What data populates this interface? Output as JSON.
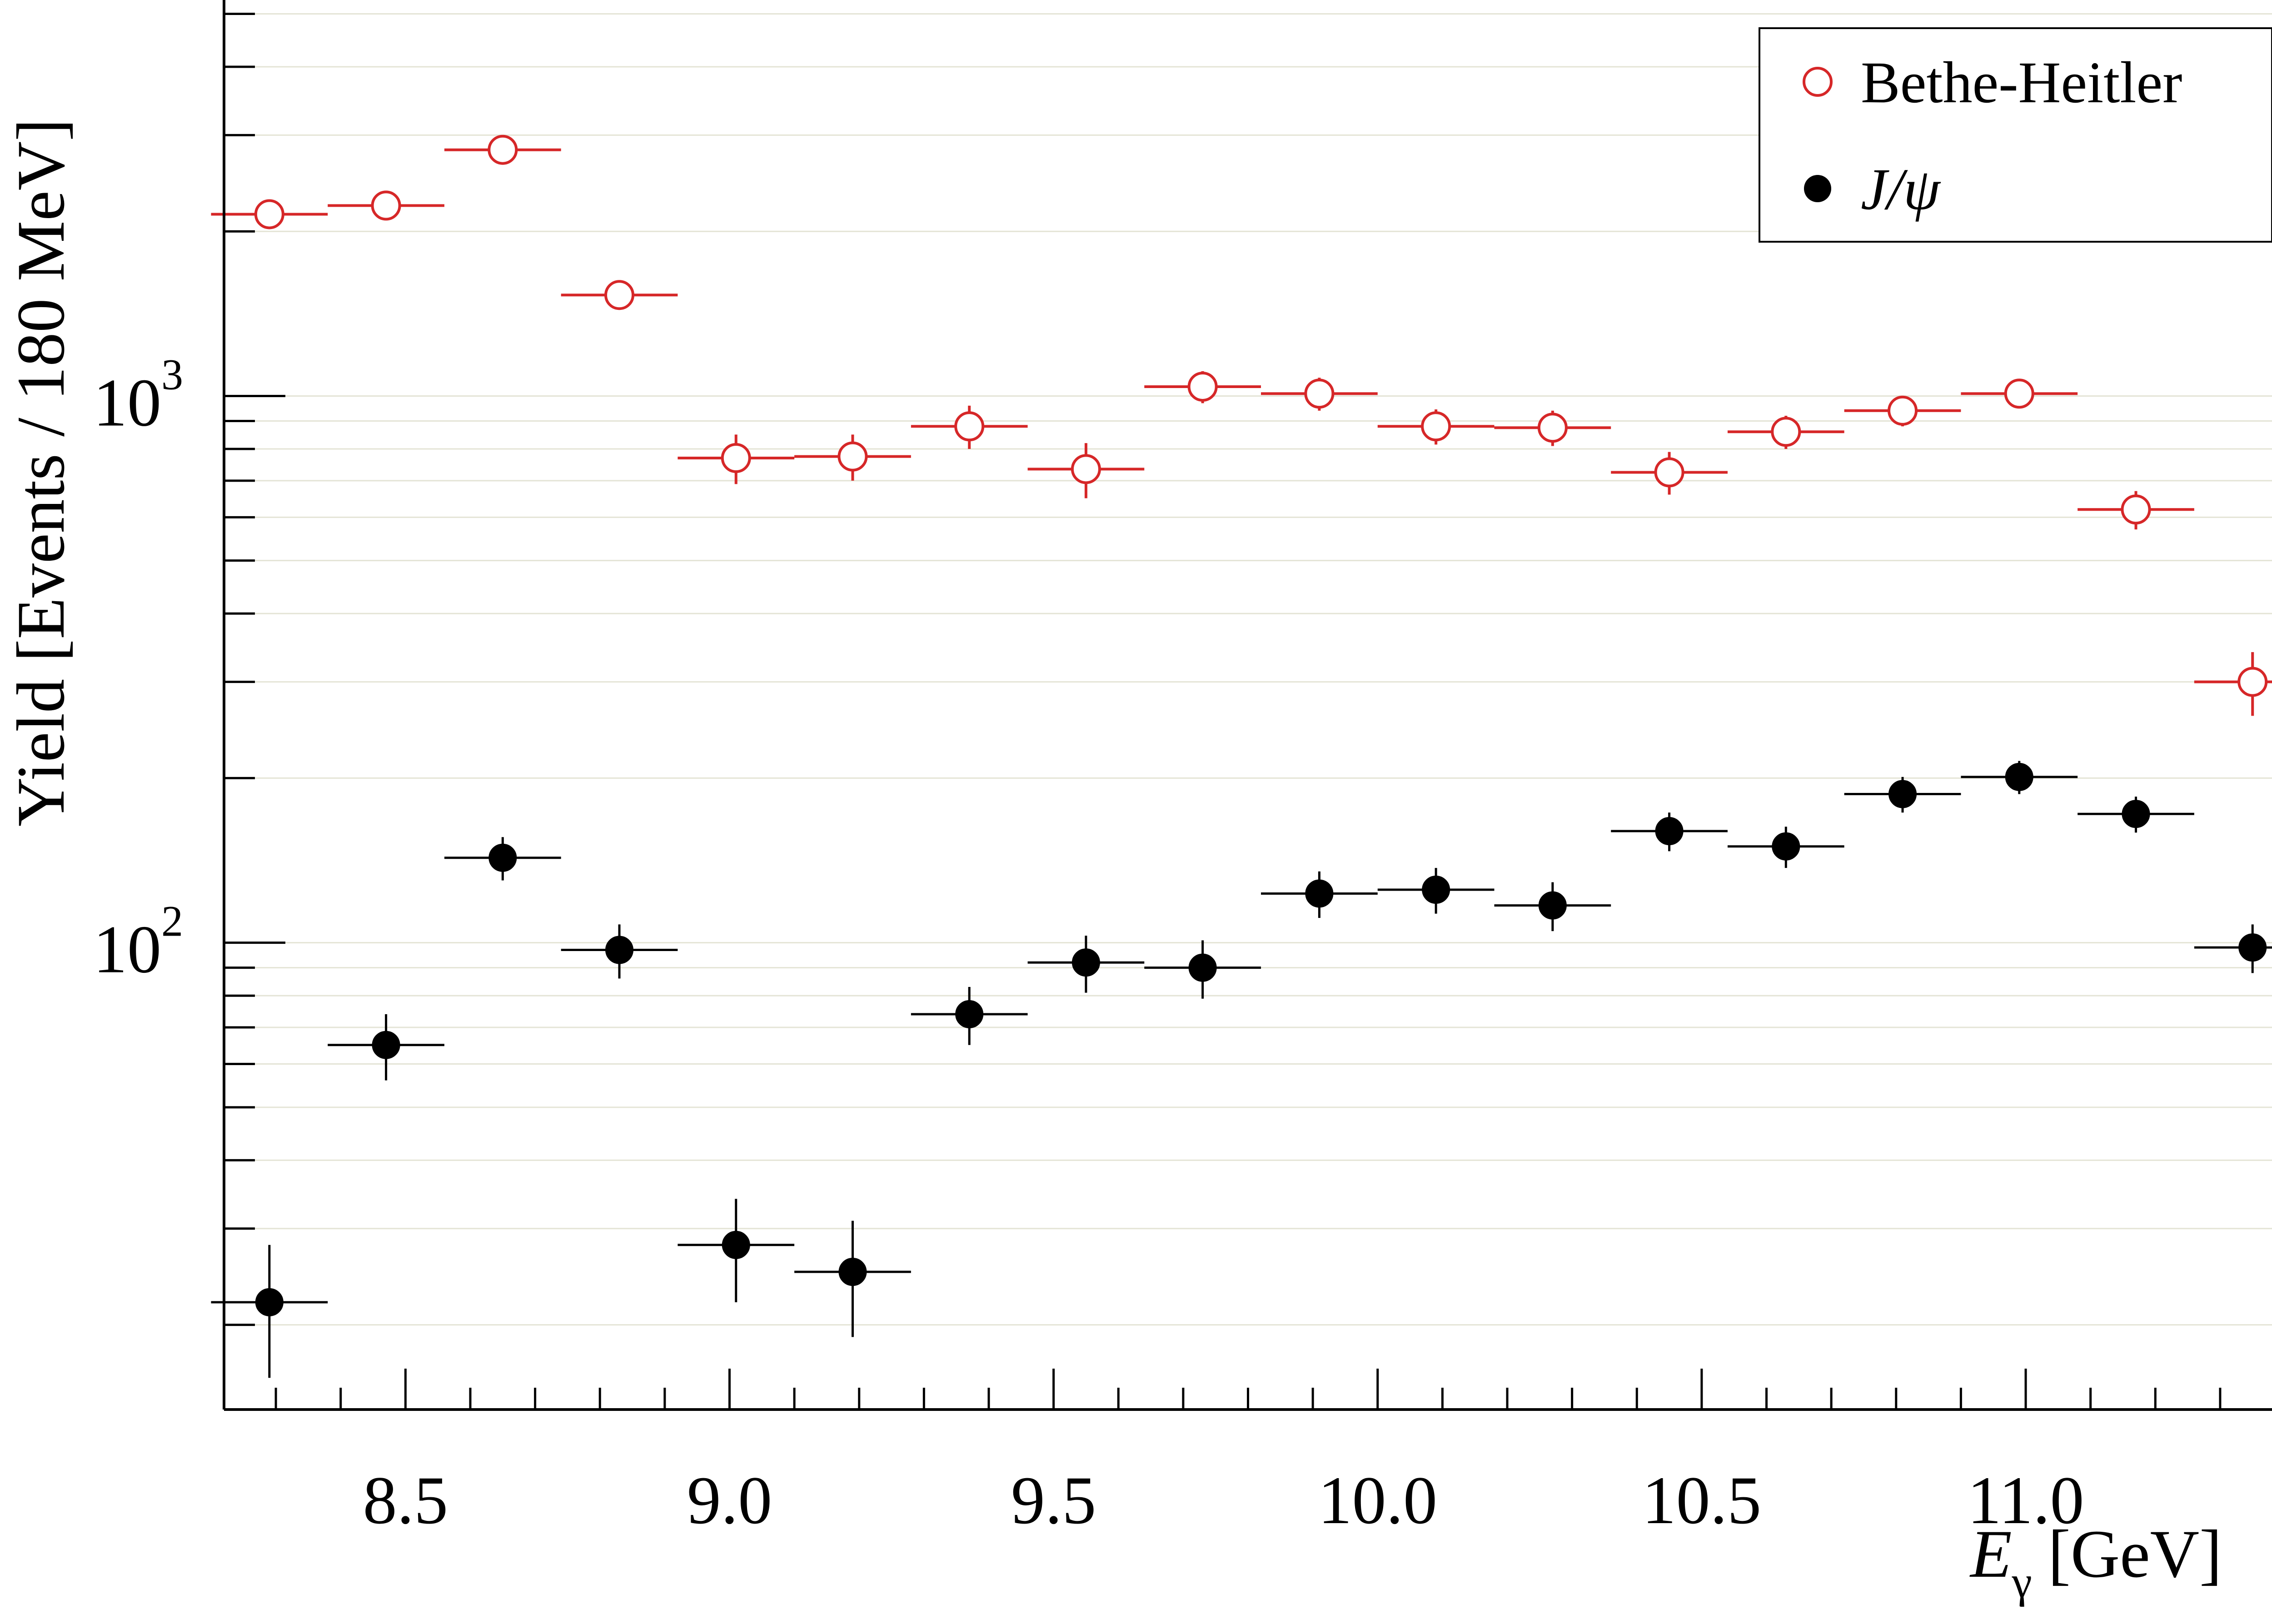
{
  "chart_data": {
    "type": "scatter",
    "title": "",
    "xlabel": {
      "main": "E",
      "sub": "γ",
      "unit": "[GeV]"
    },
    "ylabel": "Yield [Events / 180 MeV]",
    "xlim": [
      8.22,
      11.38
    ],
    "ylim": [
      14,
      5300
    ],
    "yscale": "log",
    "grid": "horizontal",
    "legend_position": "top-right",
    "x_ticks": [
      "8.5",
      "9.0",
      "9.5",
      "10.0",
      "10.5",
      "11.0"
    ],
    "y_ticks": [
      {
        "base": "10",
        "exp": "2",
        "value": 100
      },
      {
        "base": "10",
        "exp": "3",
        "value": 1000
      }
    ],
    "bin_halfwidth": 0.09,
    "series": [
      {
        "name": "Bethe-Heitler",
        "marker": "open-circle",
        "color": "#d62728",
        "x": [
          8.29,
          8.47,
          8.65,
          8.83,
          9.01,
          9.19,
          9.37,
          9.55,
          9.73,
          9.91,
          10.09,
          10.27,
          10.45,
          10.63,
          10.81,
          10.99,
          11.17,
          11.35
        ],
        "y": [
          2150,
          2230,
          2820,
          1530,
          770,
          775,
          880,
          735,
          1040,
          1010,
          880,
          875,
          725,
          860,
          940,
          1010,
          620,
          300
        ],
        "yerr": [
          80,
          90,
          100,
          90,
          80,
          75,
          80,
          85,
          70,
          70,
          65,
          65,
          65,
          60,
          60,
          55,
          50,
          40
        ]
      },
      {
        "name": "J/ψ",
        "marker": "filled-circle",
        "color": "#000000",
        "x": [
          8.29,
          8.47,
          8.65,
          8.83,
          9.01,
          9.19,
          9.37,
          9.55,
          9.73,
          9.91,
          10.09,
          10.27,
          10.45,
          10.63,
          10.81,
          10.99,
          11.17,
          11.35
        ],
        "y": [
          22,
          65,
          143,
          97,
          28,
          25,
          74,
          92,
          90,
          123,
          125,
          117,
          160,
          150,
          187,
          201,
          172,
          98
        ],
        "yerr": [
          6,
          9,
          13,
          11,
          6,
          6,
          9,
          11,
          11,
          12,
          12,
          12,
          13,
          13,
          14,
          14,
          13,
          10
        ]
      }
    ]
  }
}
